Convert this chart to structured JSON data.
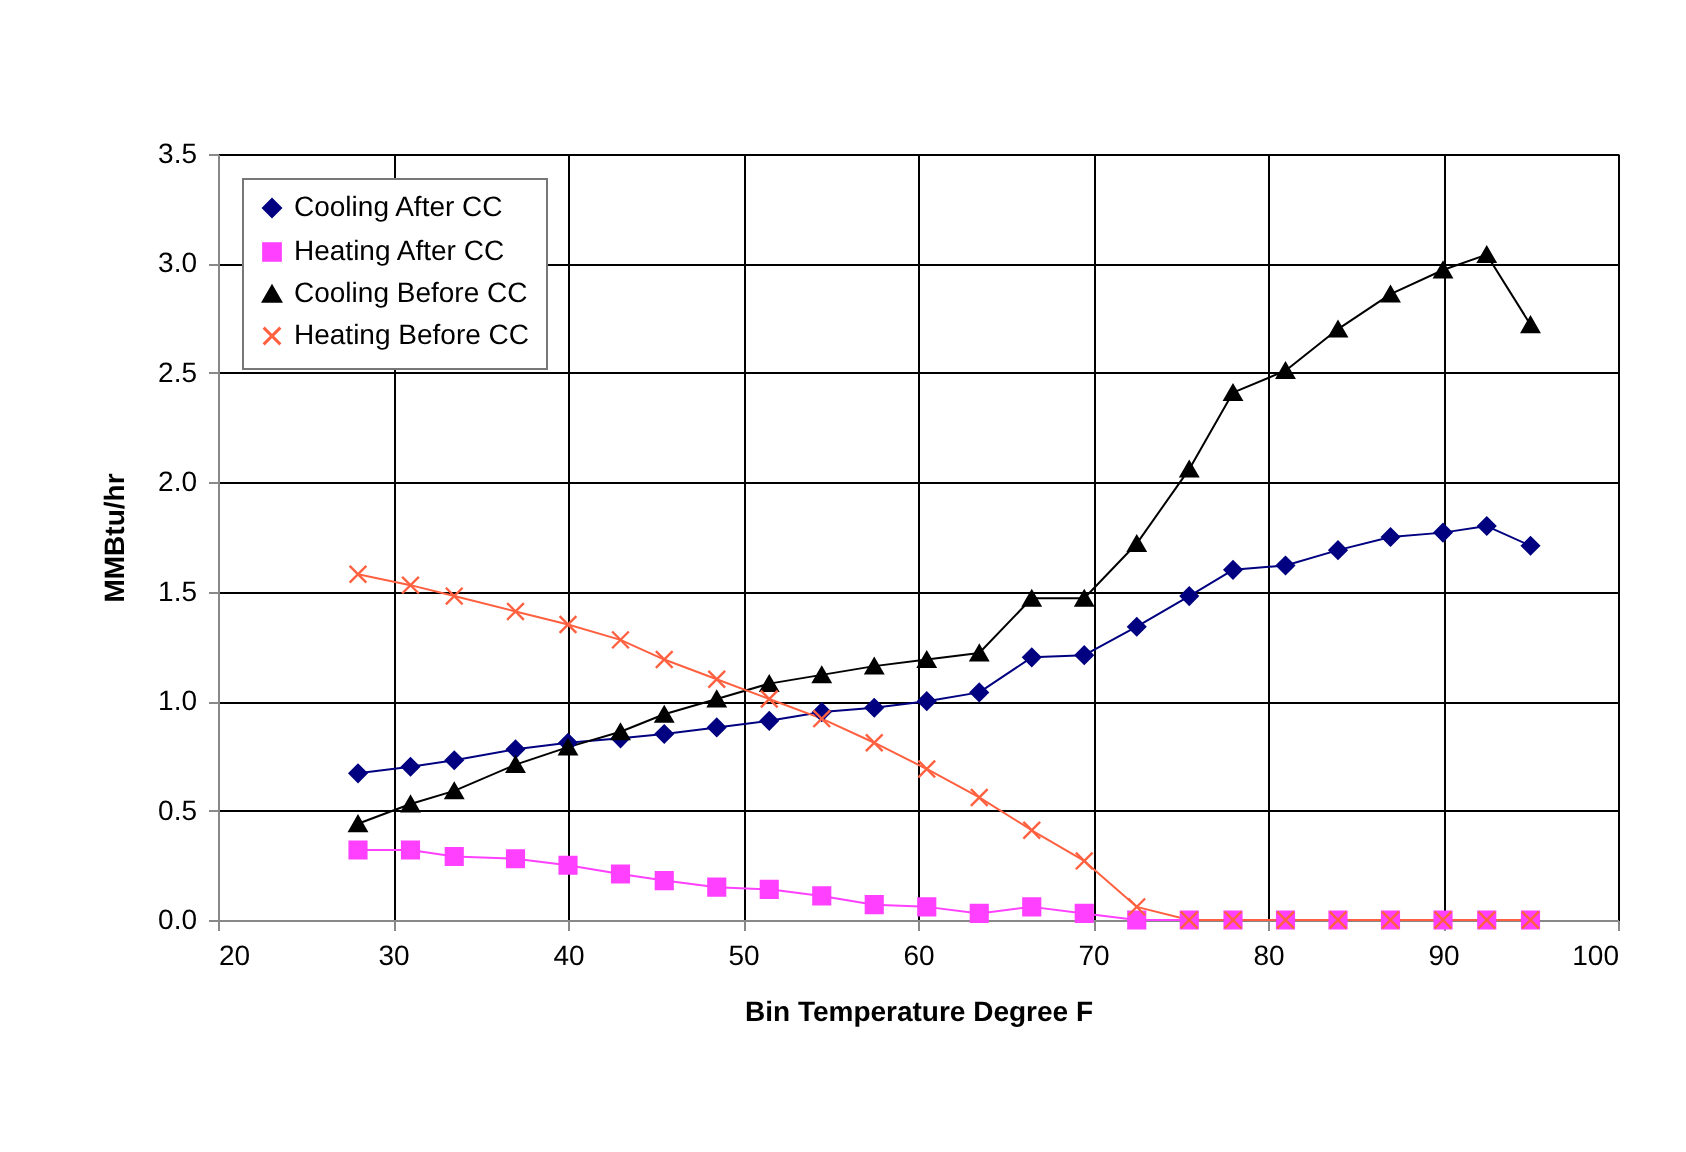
{
  "chart_data": {
    "type": "line",
    "xlabel": "Bin Temperature Degree F",
    "ylabel": "MMBtu/hr",
    "x": [
      28,
      31,
      33.5,
      37,
      40,
      43,
      45.5,
      48.5,
      51.5,
      54.5,
      57.5,
      60.5,
      63.5,
      66.5,
      69.5,
      72.5,
      75.5,
      78,
      81,
      84,
      87,
      90,
      92.5,
      95
    ],
    "series": [
      {
        "name": "Cooling After CC",
        "color": "#000080",
        "marker": "diamond",
        "values": [
          0.67,
          0.7,
          0.73,
          0.78,
          0.81,
          0.83,
          0.85,
          0.88,
          0.91,
          0.95,
          0.97,
          1.0,
          1.04,
          1.2,
          1.21,
          1.34,
          1.48,
          1.6,
          1.62,
          1.69,
          1.75,
          1.77,
          1.8,
          1.71
        ]
      },
      {
        "name": "Heating After CC",
        "color": "#ff40ff",
        "marker": "square",
        "values": [
          0.32,
          0.32,
          0.29,
          0.28,
          0.25,
          0.21,
          0.18,
          0.15,
          0.14,
          0.11,
          0.07,
          0.06,
          0.03,
          0.06,
          0.03,
          0,
          0,
          0,
          0,
          0,
          0,
          0,
          0,
          0
        ]
      },
      {
        "name": "Cooling Before CC",
        "color": "#000000",
        "marker": "triangle",
        "values": [
          0.44,
          0.53,
          0.59,
          0.71,
          0.79,
          0.86,
          0.94,
          1.01,
          1.08,
          1.12,
          1.16,
          1.19,
          1.22,
          1.47,
          1.47,
          1.72,
          2.06,
          2.41,
          2.51,
          2.7,
          2.86,
          2.97,
          3.04,
          2.72
        ]
      },
      {
        "name": "Heating Before CC",
        "color": "#ff6040",
        "marker": "cross",
        "values": [
          1.58,
          1.53,
          1.48,
          1.41,
          1.35,
          1.28,
          1.19,
          1.1,
          1.01,
          0.92,
          0.81,
          0.69,
          0.56,
          0.41,
          0.27,
          0.06,
          0,
          0,
          0,
          0,
          0,
          0,
          0,
          0
        ]
      }
    ],
    "xlim": [
      20,
      100
    ],
    "xticks": [
      20,
      30,
      40,
      50,
      60,
      70,
      80,
      90,
      100
    ],
    "ylim": [
      0,
      3.5
    ],
    "yticks": [
      {
        "value": 0,
        "label": "0.0"
      },
      0.5,
      {
        "value": 1,
        "label": "1.0"
      },
      1.5,
      {
        "value": 2,
        "label": "2.0"
      },
      2.5,
      {
        "value": 3,
        "label": "3.0"
      },
      3.5
    ],
    "grid": true,
    "legend": "top left"
  }
}
